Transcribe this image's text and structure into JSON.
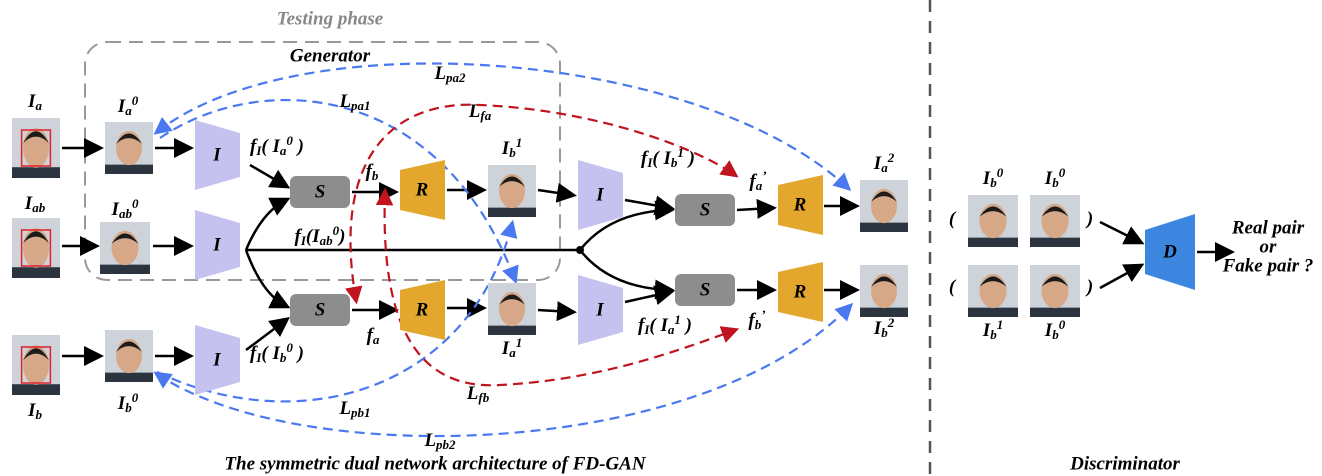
{
  "phase_label": "Testing phase",
  "generator_label": "Generator",
  "caption": "The symmetric dual network architecture of FD-GAN",
  "discriminator_caption": "Discriminator",
  "images": [
    {
      "label": [
        {
          "base": "I"
        },
        {
          "sub": "a"
        }
      ]
    },
    {
      "label": [
        {
          "base": "I"
        },
        {
          "sub": "a"
        },
        {
          "sup": "0"
        }
      ]
    },
    {
      "label": [
        {
          "base": "I"
        },
        {
          "sub": "ab"
        }
      ]
    },
    {
      "label": [
        {
          "base": "I"
        },
        {
          "sub": "ab"
        },
        {
          "sup": "0"
        }
      ]
    },
    {
      "label": [
        {
          "base": "I"
        },
        {
          "sub": "b"
        }
      ]
    },
    {
      "label": [
        {
          "base": "I"
        },
        {
          "sub": "b"
        },
        {
          "sup": "0"
        }
      ]
    },
    {
      "label": [
        {
          "base": "I"
        },
        {
          "sub": "b"
        },
        {
          "sup": "1"
        }
      ]
    },
    {
      "label": [
        {
          "base": "I"
        },
        {
          "sub": "a"
        },
        {
          "sup": "1"
        }
      ]
    },
    {
      "label": [
        {
          "base": "I"
        },
        {
          "sub": "a"
        },
        {
          "sup": "2"
        }
      ]
    },
    {
      "label": [
        {
          "base": "I"
        },
        {
          "sub": "b"
        },
        {
          "sup": "2"
        }
      ]
    },
    {
      "label": [
        {
          "base": "I"
        },
        {
          "sub": "b"
        },
        {
          "sup": "0"
        }
      ]
    },
    {
      "label": [
        {
          "base": "I"
        },
        {
          "sub": "b"
        },
        {
          "sup": "0"
        }
      ]
    },
    {
      "label": [
        {
          "base": "I"
        },
        {
          "sub": "b"
        },
        {
          "sup": "1"
        }
      ]
    },
    {
      "label": [
        {
          "base": "I"
        },
        {
          "sub": "b"
        },
        {
          "sup": "0"
        }
      ]
    }
  ],
  "modules": [
    {
      "label": "I"
    },
    {
      "label": "I"
    },
    {
      "label": "I"
    },
    {
      "label": "I"
    },
    {
      "label": "I"
    },
    {
      "label": "S"
    },
    {
      "label": "S"
    },
    {
      "label": "S"
    },
    {
      "label": "S"
    },
    {
      "label": "R"
    },
    {
      "label": "R"
    },
    {
      "label": "R"
    },
    {
      "label": "R"
    },
    {
      "label": "D"
    }
  ],
  "features": [
    {
      "label": [
        {
          "base": "f"
        },
        {
          "sub": "I"
        },
        {
          "base": "( I"
        },
        {
          "sub": "a"
        },
        {
          "sup": "0"
        },
        {
          "base": " )"
        }
      ]
    },
    {
      "label": [
        {
          "base": "f"
        },
        {
          "sub": "b"
        }
      ]
    },
    {
      "label": [
        {
          "base": "f"
        },
        {
          "sub": "I"
        },
        {
          "base": "(I"
        },
        {
          "sub": "ab"
        },
        {
          "sup": "0"
        },
        {
          "base": ")"
        }
      ]
    },
    {
      "label": [
        {
          "base": "f"
        },
        {
          "sub": "a"
        }
      ]
    },
    {
      "label": [
        {
          "base": "f"
        },
        {
          "sub": "I"
        },
        {
          "base": "( I"
        },
        {
          "sub": "b"
        },
        {
          "sup": "0"
        },
        {
          "base": " )"
        }
      ]
    },
    {
      "label": [
        {
          "base": "f"
        },
        {
          "sub": "I"
        },
        {
          "base": "( I"
        },
        {
          "sub": "b"
        },
        {
          "sup": "1"
        },
        {
          "base": " )"
        }
      ]
    },
    {
      "label": [
        {
          "base": "f"
        },
        {
          "sub": "a"
        },
        {
          "sup": "’"
        }
      ]
    },
    {
      "label": [
        {
          "base": "f"
        },
        {
          "sub": "I"
        },
        {
          "base": "( I"
        },
        {
          "sub": "a"
        },
        {
          "sup": "1"
        },
        {
          "base": " )"
        }
      ]
    },
    {
      "label": [
        {
          "base": "f"
        },
        {
          "sub": "b"
        },
        {
          "sup": "’"
        }
      ]
    }
  ],
  "losses": [
    {
      "label": [
        {
          "base": "L"
        },
        {
          "sub": "pa2"
        }
      ]
    },
    {
      "label": [
        {
          "base": "L"
        },
        {
          "sub": "pa1"
        }
      ]
    },
    {
      "label": [
        {
          "base": "L"
        },
        {
          "sub": "fa"
        }
      ]
    },
    {
      "label": [
        {
          "base": "L"
        },
        {
          "sub": "fb"
        }
      ]
    },
    {
      "label": [
        {
          "base": "L"
        },
        {
          "sub": "pb1"
        }
      ]
    },
    {
      "label": [
        {
          "base": "L"
        },
        {
          "sub": "pb2"
        }
      ]
    }
  ],
  "parentheses": [
    "(",
    "(",
    ")",
    ")"
  ],
  "output_label": [
    "Real pair",
    "or",
    "Fake pair ?"
  ]
}
